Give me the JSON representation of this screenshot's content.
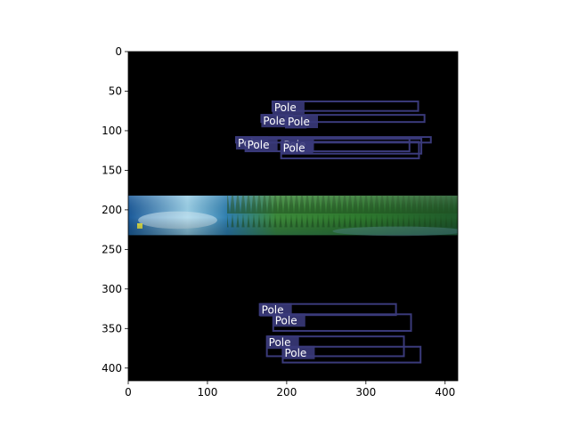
{
  "chart_data": {
    "type": "scatter",
    "image": {
      "width": 416,
      "height": 416,
      "scene": "panoramic forest strip with water",
      "strip_rows": [
        182,
        232
      ]
    },
    "xlim": [
      0,
      416
    ],
    "ylim": [
      416,
      0
    ],
    "xticks": [
      0,
      100,
      200,
      300,
      400
    ],
    "yticks": [
      0,
      50,
      100,
      150,
      200,
      250,
      300,
      350,
      400
    ],
    "box_color": "#3a3a7a",
    "label_bg": "#3a3a7a",
    "boxes": [
      {
        "label": "Pole",
        "x0": 182,
        "y0": 63,
        "x1": 366,
        "y1": 75
      },
      {
        "label": "Pole",
        "x0": 168,
        "y0": 80,
        "x1": 374,
        "y1": 89
      },
      {
        "label": "Pole",
        "x0": 199,
        "y0": 81,
        "x1": 224,
        "y1": 96
      },
      {
        "label": "Pole",
        "x0": 136,
        "y0": 108,
        "x1": 382,
        "y1": 115
      },
      {
        "label": "Pole",
        "x0": 194,
        "y0": 110,
        "x1": 370,
        "y1": 129
      },
      {
        "label": "Pole",
        "x0": 148,
        "y0": 110,
        "x1": 355,
        "y1": 126
      },
      {
        "label": "Pole",
        "x0": 193,
        "y0": 114,
        "x1": 367,
        "y1": 135
      },
      {
        "label": "Pole",
        "x0": 166,
        "y0": 319,
        "x1": 338,
        "y1": 333
      },
      {
        "label": "Pole",
        "x0": 183,
        "y0": 332,
        "x1": 357,
        "y1": 353
      },
      {
        "label": "Pole",
        "x0": 175,
        "y0": 360,
        "x1": 348,
        "y1": 385
      },
      {
        "label": "Pole",
        "x0": 195,
        "y0": 373,
        "x1": 369,
        "y1": 393
      }
    ]
  }
}
